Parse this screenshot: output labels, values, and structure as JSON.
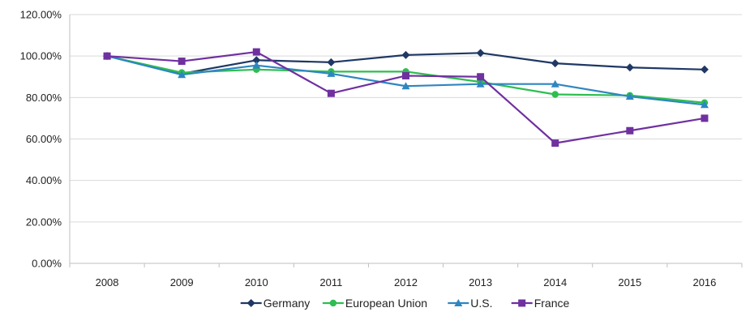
{
  "chart_data": {
    "type": "line",
    "title": "",
    "xlabel": "",
    "ylabel": "",
    "categories": [
      "2008",
      "2009",
      "2010",
      "2011",
      "2012",
      "2013",
      "2014",
      "2015",
      "2016"
    ],
    "ylim": [
      0,
      120
    ],
    "yticks": [
      0,
      20,
      40,
      60,
      80,
      100,
      120
    ],
    "ytick_labels": [
      "0.00%",
      "20.00%",
      "40.00%",
      "60.00%",
      "80.00%",
      "100.00%",
      "120.00%"
    ],
    "grid": "horizontal",
    "legend_position": "bottom",
    "series": [
      {
        "name": "Germany",
        "color": "#1f3864",
        "marker": "diamond",
        "values": [
          100,
          91.5,
          98,
          97,
          100.5,
          101.5,
          96.5,
          94.5,
          93.5
        ]
      },
      {
        "name": "European Union",
        "color": "#2dbe4f",
        "marker": "circle",
        "values": [
          100,
          92,
          93.5,
          92.5,
          92.5,
          87.5,
          81.5,
          81,
          77.5
        ]
      },
      {
        "name": "U.S.",
        "color": "#2e86c1",
        "marker": "triangle",
        "values": [
          100,
          91,
          95.5,
          91.5,
          85.5,
          86.5,
          86.5,
          80.5,
          76.5
        ]
      },
      {
        "name": "France",
        "color": "#7030a0",
        "marker": "square",
        "values": [
          100,
          97.5,
          102,
          82,
          90.5,
          90,
          58,
          64,
          70
        ]
      }
    ]
  }
}
